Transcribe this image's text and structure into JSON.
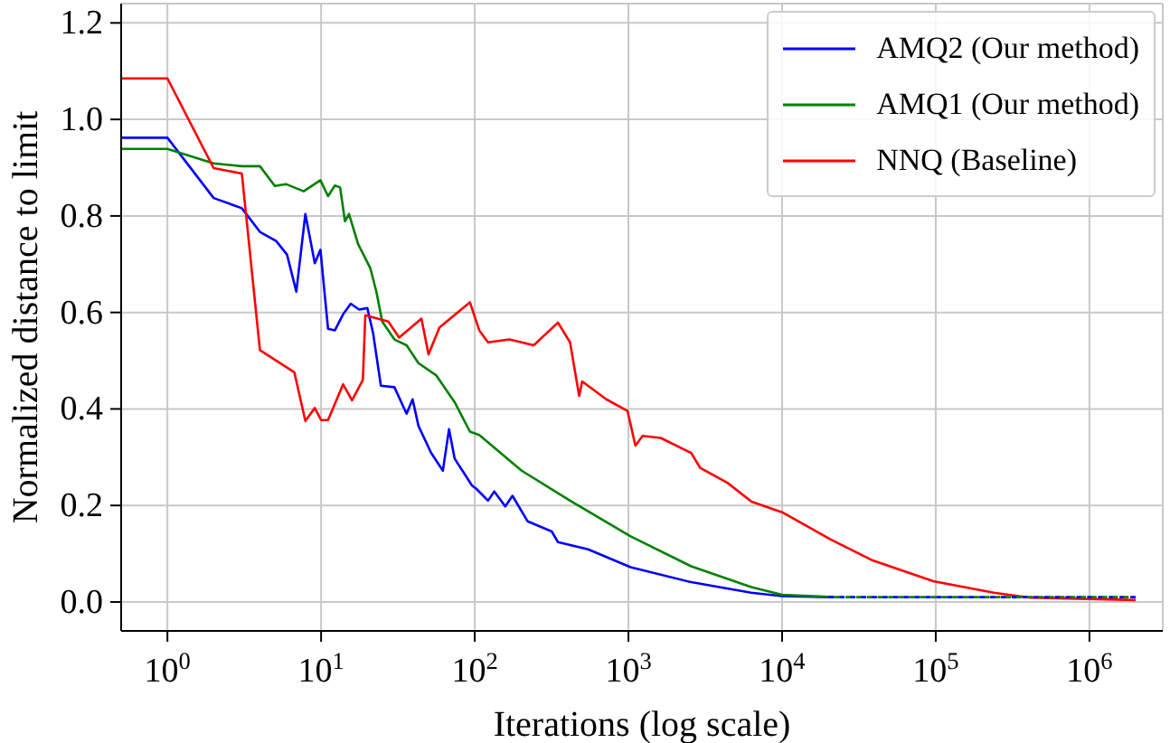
{
  "chart_data": {
    "type": "line",
    "xlabel": "Iterations (log scale)",
    "ylabel": "Normalized distance to limit",
    "log": "x",
    "grid": true,
    "legend": "top right",
    "marker": "none",
    "xlim": [
      0.5,
      3000000
    ],
    "xticks": [
      {
        "value": 1,
        "label": "10$^{0}$"
      },
      {
        "value": 10,
        "label": "10$^{1}$"
      },
      {
        "value": 100,
        "label": "10$^{2}$"
      },
      {
        "value": 1000,
        "label": "10$^{3}$"
      },
      {
        "value": 10000,
        "label": "10$^{4}$"
      },
      {
        "value": 100000,
        "label": "10$^{5}$"
      },
      {
        "value": 1000000,
        "label": "10$^{6}$"
      }
    ],
    "ylim": [
      -0.06,
      1.24
    ],
    "yticks": [
      {
        "value": 0,
        "label": "0.0"
      },
      {
        "value": 0.2,
        "label": "0.2"
      },
      {
        "value": 0.4,
        "label": "0.4"
      },
      {
        "value": 0.6,
        "label": "0.6"
      },
      {
        "value": 0.8,
        "label": "0.8"
      },
      {
        "value": 1,
        "label": "1.0"
      },
      {
        "value": 1.2,
        "label": "1.2"
      }
    ],
    "series": [
      {
        "name": "AMQ2 (Our method)",
        "color": "#0000ff",
        "line_style": "solid",
        "x": [
          0.5,
          1,
          2,
          3.05,
          4,
          5.1,
          6,
          6.9,
          7.9,
          9.1,
          9.9,
          11.1,
          12.3,
          13.9,
          15.6,
          17.7,
          20,
          21.8,
          24.5,
          30,
          36,
          39.4,
          43,
          52,
          62,
          68,
          74,
          96,
          102,
          122,
          134,
          158,
          176,
          221,
          317,
          348,
          547,
          1033,
          2560,
          6300,
          10000,
          20000
        ],
        "values": [
          0.962,
          0.962,
          0.837,
          0.816,
          0.767,
          0.748,
          0.72,
          0.643,
          0.804,
          0.702,
          0.73,
          0.566,
          0.563,
          0.596,
          0.618,
          0.606,
          0.609,
          0.557,
          0.448,
          0.445,
          0.39,
          0.42,
          0.365,
          0.309,
          0.272,
          0.358,
          0.297,
          0.241,
          0.235,
          0.21,
          0.229,
          0.198,
          0.22,
          0.167,
          0.146,
          0.124,
          0.109,
          0.072,
          0.041,
          0.019,
          0.012,
          0.01
        ]
      },
      {
        "name": "AMQ1 (Our method)",
        "color": "#008000",
        "line_style": "solid",
        "x": [
          0.5,
          1,
          2,
          3.05,
          4,
          5,
          5.9,
          7.7,
          9.9,
          11.1,
          12.3,
          13.3,
          14.3,
          15.2,
          17.4,
          20.9,
          22.9,
          25,
          30,
          36,
          43,
          56,
          74,
          93,
          107,
          202,
          417,
          1033,
          2560,
          6300,
          10000,
          22000
        ],
        "values": [
          0.939,
          0.939,
          0.909,
          0.903,
          0.903,
          0.862,
          0.866,
          0.851,
          0.874,
          0.841,
          0.863,
          0.859,
          0.789,
          0.804,
          0.742,
          0.692,
          0.643,
          0.581,
          0.544,
          0.532,
          0.495,
          0.47,
          0.414,
          0.353,
          0.346,
          0.272,
          0.21,
          0.136,
          0.074,
          0.031,
          0.015,
          0.01
        ]
      },
      {
        "name": "NNQ (Baseline)",
        "color": "#ff0000",
        "line_style": "solid",
        "x": [
          0.5,
          1,
          2,
          3.05,
          4,
          6.7,
          7.9,
          9.1,
          10,
          11.1,
          13.9,
          15.9,
          18.7,
          19.4,
          27.4,
          32.2,
          45,
          50,
          59,
          93,
          107,
          122,
          168,
          242,
          348,
          417,
          478,
          500,
          718,
          986,
          1110,
          1237,
          1622,
          2558,
          2930,
          4406,
          6330,
          10000,
          20600,
          38900,
          96200,
          239000,
          410000,
          2000000
        ],
        "values": [
          1.085,
          1.085,
          0.899,
          0.888,
          0.522,
          0.476,
          0.375,
          0.402,
          0.377,
          0.377,
          0.451,
          0.418,
          0.46,
          0.594,
          0.581,
          0.548,
          0.587,
          0.513,
          0.569,
          0.621,
          0.563,
          0.538,
          0.544,
          0.532,
          0.579,
          0.538,
          0.427,
          0.457,
          0.42,
          0.396,
          0.324,
          0.344,
          0.34,
          0.309,
          0.278,
          0.247,
          0.208,
          0.186,
          0.13,
          0.086,
          0.043,
          0.019,
          0.009,
          0.004
        ]
      },
      {
        "color": "#0000ff",
        "line_style": "dashed",
        "x": [
          20000,
          2000000
        ],
        "values": [
          0.01,
          0.01
        ]
      },
      {
        "color": "#008000",
        "line_style": "dashed",
        "x": [
          22000,
          1800000
        ],
        "values": [
          0.01,
          0.01
        ]
      }
    ]
  }
}
